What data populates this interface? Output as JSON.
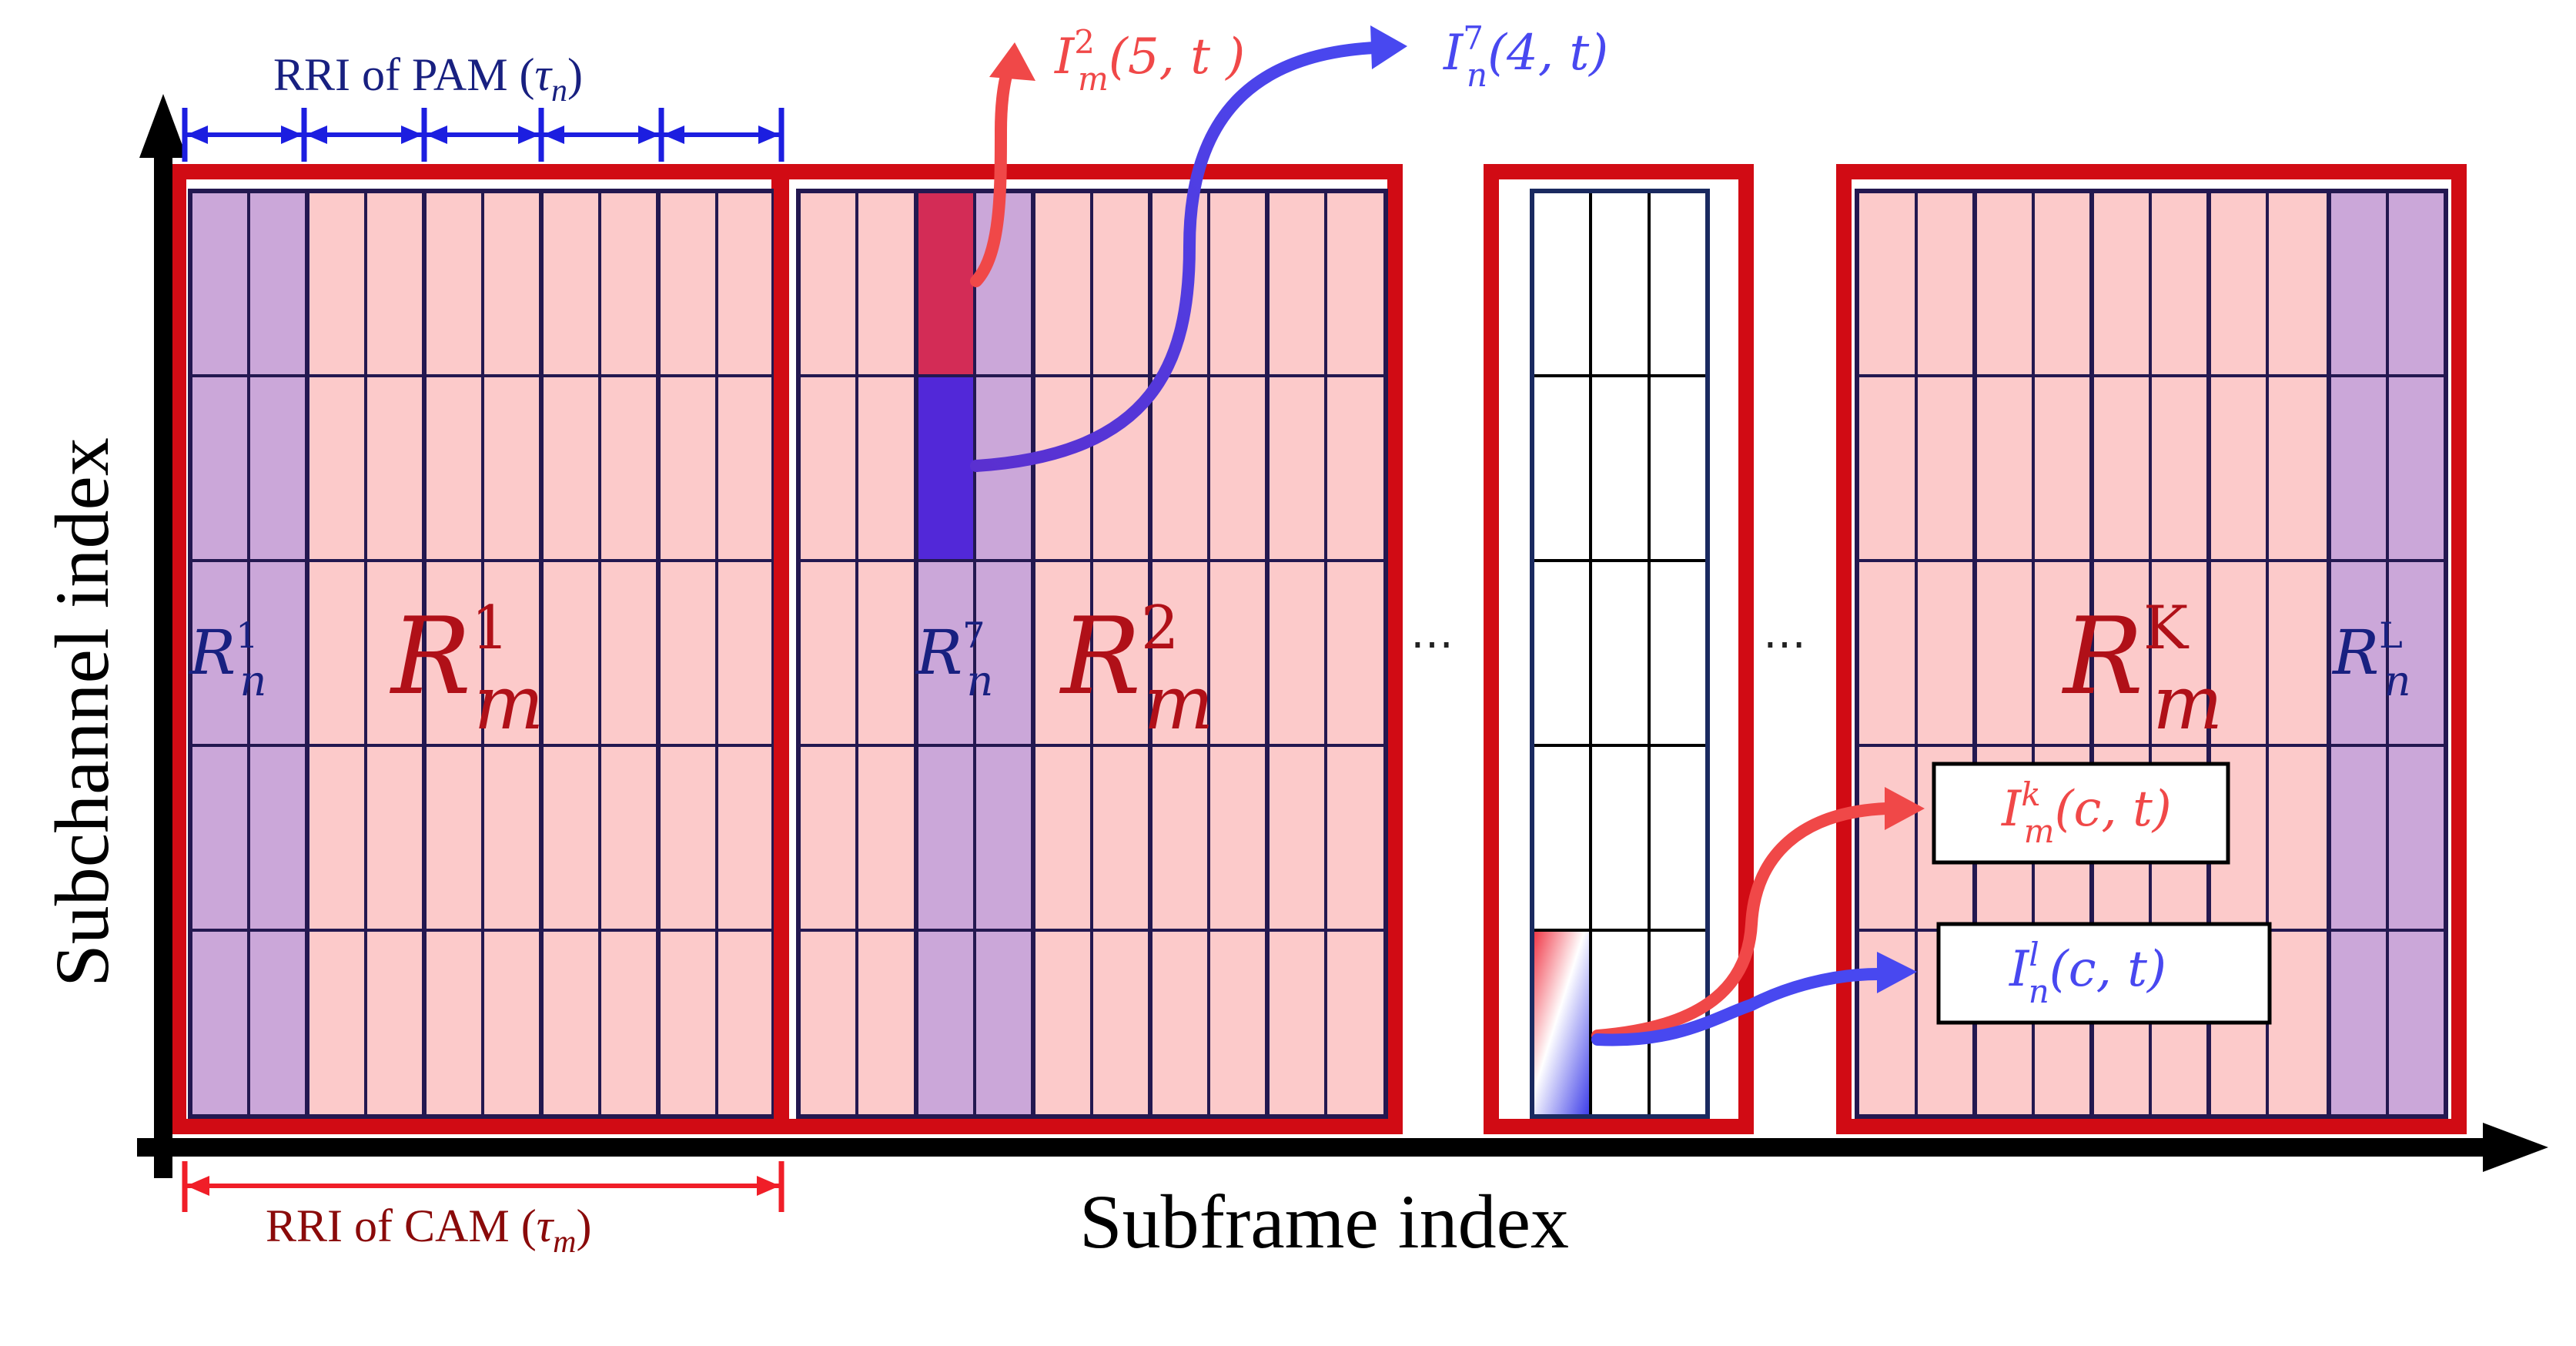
{
  "axes": {
    "y_label": "Subchannel index",
    "x_label": "Subframe index"
  },
  "rri_pam": {
    "label": "RRI of PAM (",
    "sym": "τ",
    "sub": "n",
    "close": ")"
  },
  "rri_cam": {
    "label": "RRI of CAM (",
    "sym": "τ",
    "sub": "m",
    "close": ")"
  },
  "ellipsis": "⋯",
  "blocks": {
    "b1": {
      "rn": {
        "base": "R",
        "sub": "n",
        "sup": "1"
      },
      "rm": {
        "base": "R",
        "sub": "m",
        "sup": "1"
      }
    },
    "b2": {
      "rn": {
        "base": "R",
        "sub": "n",
        "sup": "7"
      },
      "rm": {
        "base": "R",
        "sub": "m",
        "sup": "2"
      }
    },
    "b4": {
      "rn": {
        "base": "R",
        "sub": "n",
        "sup": "L"
      },
      "rm": {
        "base": "R",
        "sub": "m",
        "sup": "K"
      }
    }
  },
  "interference": {
    "im2": {
      "base": "I",
      "sub": "m",
      "sup": "2",
      "args": "(5, t )"
    },
    "in7": {
      "base": "I",
      "sub": "n",
      "sup": "7",
      "args": "(4, t)"
    },
    "imk": {
      "base": "I",
      "sub": "m",
      "sup": "k",
      "args": "(c, t)"
    },
    "inl": {
      "base": "I",
      "sub": "n",
      "sup": "l",
      "args": "(c, t)"
    }
  },
  "colors": {
    "frame_red": "#d10b14",
    "cam_fill": "#fccaca",
    "pam_fill": "#cba7d9",
    "grid_line": "#231850",
    "pam_blue": "#1c1ee0",
    "cam_red": "#f01e28",
    "int_red": "#f04848",
    "int_blue": "#4848f0",
    "label_darkred": "#8a0a0a",
    "label_navy": "#182080",
    "bar_red": "#d32c56",
    "bar_blue": "#5228d8"
  }
}
